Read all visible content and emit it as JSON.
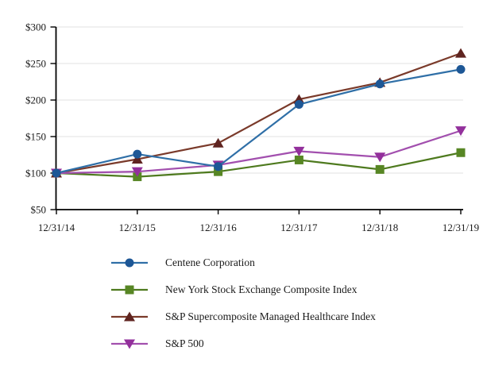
{
  "chart_data": {
    "type": "line",
    "title": "",
    "xlabel": "",
    "ylabel": "",
    "currency_prefix": "$",
    "categories": [
      "12/31/14",
      "12/31/15",
      "12/31/16",
      "12/31/17",
      "12/31/18",
      "12/31/19"
    ],
    "y_ticks": [
      50,
      100,
      150,
      200,
      250,
      300
    ],
    "ylim": [
      50,
      300
    ],
    "grid": "horizontal",
    "gridline_color": "#e0e0e0",
    "axis_color": "#000000",
    "legend_position": "bottom-left",
    "series": [
      {
        "name": "Centene Corporation",
        "marker": "circle",
        "line_color": "#2f6fa7",
        "marker_color": "#1d5796",
        "values": [
          100,
          126,
          109,
          194,
          222,
          242
        ]
      },
      {
        "name": "New York Stock Exchange Composite Index",
        "marker": "square",
        "line_color": "#4e7a1e",
        "marker_color": "#578624",
        "values": [
          100,
          95,
          102,
          118,
          105,
          128
        ]
      },
      {
        "name": "S&P Supercomposite Managed Healthcare Index",
        "marker": "triangle-up",
        "line_color": "#7a3a2a",
        "marker_color": "#5f2420",
        "values": [
          100,
          119,
          141,
          201,
          224,
          264
        ]
      },
      {
        "name": "S&P 500",
        "marker": "triangle-down",
        "line_color": "#a24fae",
        "marker_color": "#93309c",
        "values": [
          100,
          102,
          111,
          130,
          122,
          158
        ]
      }
    ],
    "draw_order": [
      1,
      2,
      3,
      0
    ]
  }
}
